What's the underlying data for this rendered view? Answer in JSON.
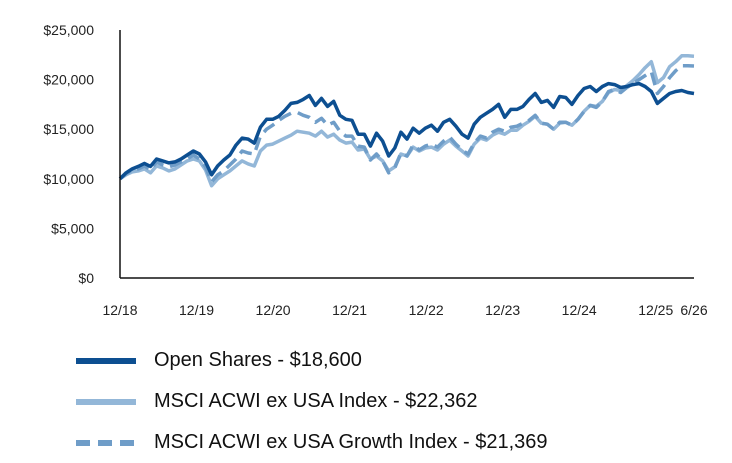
{
  "chart_data": {
    "type": "line",
    "x_ticks": [
      "12/18",
      "12/19",
      "12/20",
      "12/21",
      "12/22",
      "12/23",
      "12/24",
      "12/25",
      "6/26"
    ],
    "y_ticks": [
      "$0",
      "$5,000",
      "$10,000",
      "$15,000",
      "$20,000",
      "$25,000"
    ],
    "ylim": [
      0,
      25000
    ],
    "grid": false,
    "legend_position": "bottom",
    "series": [
      {
        "name": "Open Shares - $18,600",
        "color": "#0d4f91",
        "dash": "solid",
        "values": [
          10000,
          10600,
          11000,
          11250,
          11550,
          11250,
          12000,
          11800,
          11600,
          11700,
          12000,
          12400,
          12800,
          12500,
          11700,
          10400,
          11300,
          11900,
          12400,
          13400,
          14100,
          14000,
          13600,
          15200,
          16000,
          16000,
          16300,
          16900,
          17600,
          17700,
          18000,
          18400,
          17400,
          18100,
          17300,
          17800,
          16400,
          16000,
          15900,
          14500,
          14500,
          13300,
          14600,
          13800,
          12300,
          13100,
          14700,
          14000,
          15100,
          14600,
          15100,
          15400,
          14800,
          15700,
          16000,
          15300,
          14500,
          14100,
          15500,
          16200,
          16600,
          17000,
          17500,
          16200,
          17000,
          17000,
          17300,
          18000,
          18600,
          17700,
          17900,
          17200,
          18300,
          18200,
          17500,
          18400,
          19100,
          19300,
          18800,
          19300,
          19600,
          19500,
          19200,
          19300,
          19500,
          19600,
          19300,
          18800,
          17600,
          18100,
          18600,
          18800,
          18900,
          18700,
          18600
        ]
      },
      {
        "name": "MSCI ACWI ex USA Index - $22,362",
        "color": "#93b7d8",
        "dash": "solid",
        "values": [
          10000,
          10400,
          10700,
          10800,
          11000,
          10600,
          11300,
          11100,
          10800,
          11000,
          11400,
          11800,
          12000,
          11800,
          10900,
          9300,
          10000,
          10400,
          10800,
          11300,
          11800,
          11500,
          11300,
          12800,
          13400,
          13500,
          13800,
          14100,
          14400,
          14800,
          14700,
          14600,
          14300,
          14800,
          14200,
          14500,
          13900,
          13600,
          13700,
          12900,
          13000,
          12000,
          12300,
          11800,
          10800,
          11200,
          12500,
          12300,
          13200,
          12800,
          13100,
          13200,
          12900,
          13500,
          13900,
          13300,
          12800,
          12300,
          13500,
          14100,
          13900,
          14400,
          14700,
          14500,
          14900,
          14900,
          15400,
          15800,
          16300,
          15600,
          15500,
          15000,
          15600,
          15700,
          15400,
          16000,
          16800,
          17400,
          17300,
          17800,
          18700,
          19000,
          18900,
          19400,
          19900,
          20500,
          21200,
          21800,
          19700,
          20200,
          21300,
          21800,
          22400,
          22400,
          22362
        ]
      },
      {
        "name": "MSCI ACWI ex USA Growth Index - $21,369",
        "color": "#6f9dc8",
        "dash": "dashed",
        "values": [
          10000,
          10500,
          10900,
          11000,
          11300,
          10900,
          11700,
          11400,
          11200,
          11400,
          11700,
          12000,
          12400,
          12000,
          11200,
          9700,
          10400,
          10800,
          11400,
          12000,
          12800,
          12600,
          12500,
          14300,
          15000,
          15400,
          15900,
          16300,
          16600,
          16700,
          16400,
          16200,
          15700,
          16100,
          15400,
          15700,
          14800,
          14300,
          14300,
          13300,
          13200,
          11900,
          12500,
          11800,
          10600,
          11100,
          12600,
          12300,
          13400,
          12900,
          13300,
          13500,
          13200,
          13800,
          14200,
          13500,
          12900,
          12500,
          13600,
          14300,
          14100,
          14700,
          15000,
          14800,
          15200,
          15300,
          15600,
          15900,
          16400,
          15600,
          15500,
          15000,
          15700,
          15700,
          15400,
          16000,
          16800,
          17400,
          17200,
          17800,
          18800,
          19000,
          18700,
          19200,
          19600,
          20000,
          20400,
          20800,
          18600,
          19300,
          20200,
          20900,
          21400,
          21400,
          21369
        ]
      }
    ]
  }
}
